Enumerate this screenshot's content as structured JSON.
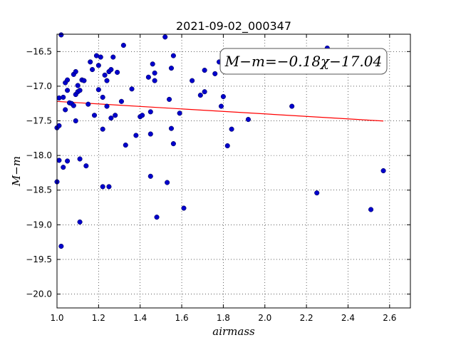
{
  "chart_data": {
    "type": "scatter",
    "title": "2021-09-02_000347",
    "xlabel": "airmass",
    "ylabel": "M−m",
    "annotation": "M−m=−0.18χ−17.04",
    "xlim": [
      1.0,
      2.7
    ],
    "ylim": [
      -20.2,
      -16.25
    ],
    "y_inverted": true,
    "grid": true,
    "grid_style": "dotted",
    "xticks": [
      1.0,
      1.2,
      1.4,
      1.6,
      1.8,
      2.0,
      2.2,
      2.4,
      2.6
    ],
    "xtick_labels": [
      "1.0",
      "1.2",
      "1.4",
      "1.6",
      "1.8",
      "2.0",
      "2.2",
      "2.4",
      "2.6"
    ],
    "yticks": [
      -16.5,
      -17.0,
      -17.5,
      -18.0,
      -18.5,
      -19.0,
      -19.5,
      -20.0
    ],
    "ytick_labels": [
      "−16.5",
      "−17.0",
      "−17.5",
      "−18.0",
      "−18.5",
      "−19.0",
      "−19.5",
      "−20.0"
    ],
    "point_color": "#0000cc",
    "line_color": "#ff0000",
    "fit": {
      "slope": -0.18,
      "intercept": -17.04,
      "x_range": [
        1.0,
        2.57
      ]
    },
    "points": [
      [
        1.0,
        -18.38
      ],
      [
        1.0,
        -17.6
      ],
      [
        1.01,
        -17.57
      ],
      [
        1.01,
        -17.17
      ],
      [
        1.01,
        -18.07
      ],
      [
        1.02,
        -16.26
      ],
      [
        1.02,
        -19.31
      ],
      [
        1.03,
        -17.16
      ],
      [
        1.03,
        -18.17
      ],
      [
        1.04,
        -17.34
      ],
      [
        1.04,
        -16.95
      ],
      [
        1.05,
        -16.91
      ],
      [
        1.05,
        -17.06
      ],
      [
        1.05,
        -18.08
      ],
      [
        1.06,
        -17.24
      ],
      [
        1.07,
        -17.25
      ],
      [
        1.08,
        -17.28
      ],
      [
        1.08,
        -16.83
      ],
      [
        1.09,
        -16.79
      ],
      [
        1.09,
        -17.12
      ],
      [
        1.09,
        -17.5
      ],
      [
        1.1,
        -17.08
      ],
      [
        1.1,
        -16.99
      ],
      [
        1.11,
        -17.06
      ],
      [
        1.11,
        -18.05
      ],
      [
        1.11,
        -18.96
      ],
      [
        1.12,
        -16.91
      ],
      [
        1.13,
        -16.92
      ],
      [
        1.14,
        -18.15
      ],
      [
        1.15,
        -17.26
      ],
      [
        1.16,
        -16.65
      ],
      [
        1.17,
        -16.76
      ],
      [
        1.18,
        -17.42
      ],
      [
        1.19,
        -16.56
      ],
      [
        1.2,
        -16.7
      ],
      [
        1.2,
        -17.05
      ],
      [
        1.21,
        -16.58
      ],
      [
        1.22,
        -17.16
      ],
      [
        1.22,
        -17.62
      ],
      [
        1.22,
        -18.45
      ],
      [
        1.23,
        -16.84
      ],
      [
        1.24,
        -17.29
      ],
      [
        1.24,
        -16.92
      ],
      [
        1.25,
        -16.79
      ],
      [
        1.25,
        -18.45
      ],
      [
        1.26,
        -16.76
      ],
      [
        1.26,
        -17.46
      ],
      [
        1.27,
        -16.58
      ],
      [
        1.28,
        -17.42
      ],
      [
        1.29,
        -16.8
      ],
      [
        1.31,
        -17.22
      ],
      [
        1.32,
        -16.41
      ],
      [
        1.33,
        -17.85
      ],
      [
        1.36,
        -17.04
      ],
      [
        1.38,
        -17.71
      ],
      [
        1.4,
        -17.44
      ],
      [
        1.41,
        -17.42
      ],
      [
        1.44,
        -16.87
      ],
      [
        1.45,
        -17.37
      ],
      [
        1.45,
        -17.69
      ],
      [
        1.45,
        -18.3
      ],
      [
        1.46,
        -16.68
      ],
      [
        1.47,
        -16.92
      ],
      [
        1.47,
        -16.81
      ],
      [
        1.48,
        -18.89
      ],
      [
        1.52,
        -16.29
      ],
      [
        1.53,
        -18.39
      ],
      [
        1.54,
        -17.19
      ],
      [
        1.55,
        -16.74
      ],
      [
        1.55,
        -17.61
      ],
      [
        1.56,
        -16.56
      ],
      [
        1.56,
        -17.83
      ],
      [
        1.59,
        -17.39
      ],
      [
        1.61,
        -18.76
      ],
      [
        1.65,
        -16.92
      ],
      [
        1.69,
        -17.13
      ],
      [
        1.71,
        -16.77
      ],
      [
        1.71,
        -17.08
      ],
      [
        1.76,
        -16.82
      ],
      [
        1.78,
        -16.65
      ],
      [
        1.79,
        -17.29
      ],
      [
        1.8,
        -17.15
      ],
      [
        1.82,
        -17.86
      ],
      [
        1.84,
        -17.62
      ],
      [
        1.92,
        -17.48
      ],
      [
        2.13,
        -17.29
      ],
      [
        2.25,
        -18.54
      ],
      [
        2.3,
        -16.45
      ],
      [
        2.51,
        -18.78
      ],
      [
        2.57,
        -18.22
      ]
    ]
  }
}
